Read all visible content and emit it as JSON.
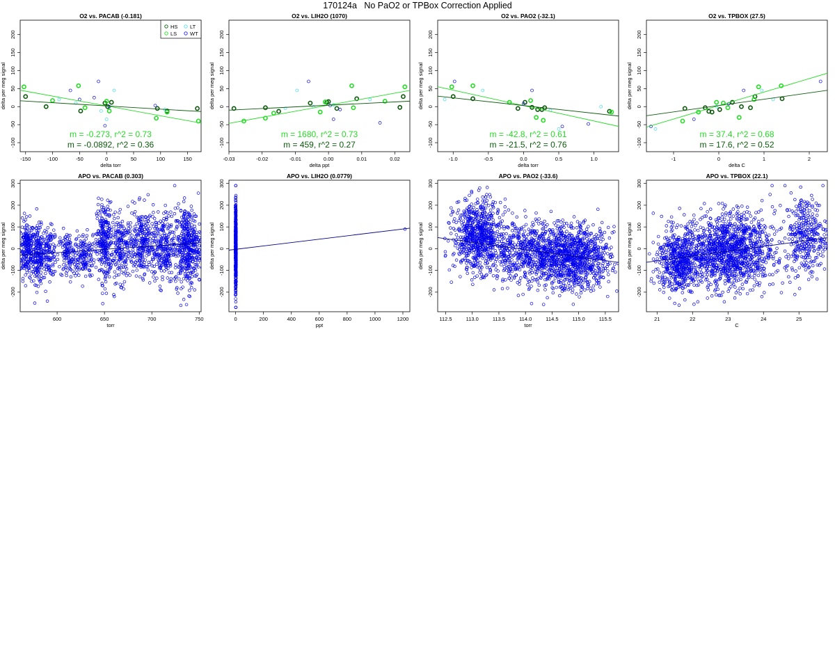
{
  "page_title": "170124a   No PaO2 or TPBox Correction Applied",
  "colors": {
    "HS": "#0b5a0b",
    "LS": "#22dd22",
    "LT": "#55ddee",
    "WT": "#2222dd",
    "apo": "#0000ee",
    "fit_HS": "#0b5a0b",
    "fit_LS": "#22dd22",
    "fit_apo": "#000088"
  },
  "legend": {
    "entries": [
      "HS",
      "LS",
      "LT",
      "WT"
    ],
    "position": "top-right"
  },
  "chart_data": [
    {
      "type": "scatter",
      "title": "O2 vs. PACAB (-0.181)",
      "xlabel": "delta torr",
      "ylabel": "delta per meg signal",
      "xlim": [
        -160,
        175
      ],
      "ylim": [
        -125,
        240
      ],
      "xticks": [
        -150,
        -100,
        -50,
        0,
        50,
        100,
        150
      ],
      "xtick_labels": [
        "-150",
        "-100",
        "-50",
        "0",
        "50",
        "100",
        "150"
      ],
      "yticks": [
        -100,
        -50,
        0,
        50,
        100,
        150,
        200
      ],
      "ytick_labels": [
        "-100",
        "-50",
        "0",
        "50",
        "100",
        "150",
        "200"
      ],
      "show_legend": true,
      "annotations": [
        "m = -0.273, r^2 = 0.73",
        "m = -0.0892, r^2 = 0.36"
      ],
      "fits": [
        {
          "group": "LS",
          "slope": -0.273,
          "intercept": 2
        },
        {
          "group": "HS",
          "slope": -0.0892,
          "intercept": 2
        }
      ],
      "series": [
        {
          "group": "HS",
          "x": [
            -150,
            -112,
            -48,
            -3,
            2,
            9,
            94,
            112,
            168
          ],
          "y": [
            28,
            0,
            -12,
            10,
            0,
            12,
            -5,
            -12,
            -5
          ]
        },
        {
          "group": "LS",
          "x": [
            -153,
            -100,
            -52,
            -40,
            0,
            5,
            92,
            112,
            170
          ],
          "y": [
            55,
            17,
            58,
            -3,
            15,
            -12,
            -32,
            -15,
            -40
          ]
        },
        {
          "group": "LT",
          "x": [
            -88,
            -57,
            -10,
            0,
            14,
            108
          ],
          "y": [
            20,
            10,
            -12,
            -35,
            45,
            -8
          ]
        },
        {
          "group": "WT",
          "x": [
            -67,
            -23,
            -15,
            -3,
            5,
            -50,
            90
          ],
          "y": [
            45,
            25,
            70,
            -53,
            0,
            20,
            3
          ]
        }
      ]
    },
    {
      "type": "scatter",
      "title": "O2 vs. LIH2O (1070)",
      "xlabel": "delta ppt",
      "ylabel": "delta per meg signal",
      "xlim": [
        -0.03,
        0.0245
      ],
      "ylim": [
        -125,
        240
      ],
      "xticks": [
        -0.03,
        -0.02,
        -0.01,
        0,
        0.01,
        0.02
      ],
      "xtick_labels": [
        "-0.03",
        "-0.02",
        "-0.01",
        "0.00",
        "0.01",
        "0.02"
      ],
      "yticks": [
        -100,
        -50,
        0,
        50,
        100,
        150,
        200
      ],
      "ytick_labels": [
        "-100",
        "-50",
        "0",
        "50",
        "100",
        "150",
        "200"
      ],
      "show_legend": false,
      "annotations": [
        "m = 1680, r^2 = 0.73",
        "m = 459, r^2 = 0.27"
      ],
      "fits": [
        {
          "group": "LS",
          "slope": 1680,
          "intercept": 4
        },
        {
          "group": "HS",
          "slope": 459,
          "intercept": 4
        }
      ],
      "series": [
        {
          "group": "HS",
          "x": [
            -0.0285,
            -0.019,
            -0.015,
            -0.0055,
            -0.0005,
            0.0,
            0.0025,
            0.0085,
            0.0215,
            0.0225
          ],
          "y": [
            -5,
            -3,
            -13,
            10,
            12,
            14,
            -5,
            22,
            -2,
            28
          ]
        },
        {
          "group": "LS",
          "x": [
            -0.0255,
            -0.019,
            -0.0165,
            -0.0025,
            -0.001,
            0.007,
            0.0075,
            0.017,
            0.023
          ],
          "y": [
            -40,
            -32,
            -18,
            -15,
            13,
            58,
            -3,
            15,
            55
          ]
        },
        {
          "group": "LT",
          "x": [
            -0.0095,
            -0.013,
            -0.0045,
            0.0015,
            0.0125
          ],
          "y": [
            45,
            -5,
            0,
            5,
            20
          ]
        },
        {
          "group": "WT",
          "x": [
            -0.006,
            0.0035,
            0.0015,
            0.0155,
            0.0005
          ],
          "y": [
            70,
            -8,
            -35,
            -45,
            3
          ]
        }
      ]
    },
    {
      "type": "scatter",
      "title": "O2 vs. PAO2 (-32.1)",
      "xlabel": "delta torr",
      "ylabel": "delta per meg signal",
      "xlim": [
        -1.22,
        1.35
      ],
      "ylim": [
        -125,
        240
      ],
      "xticks": [
        -1.0,
        -0.5,
        0,
        0.5,
        1.0
      ],
      "xtick_labels": [
        "-1.0",
        "-0.5",
        "0.0",
        "0.5",
        "1.0"
      ],
      "yticks": [
        -100,
        -50,
        0,
        50,
        100,
        150,
        200
      ],
      "ytick_labels": [
        "-100",
        "-50",
        "0",
        "50",
        "100",
        "150",
        "200"
      ],
      "show_legend": false,
      "annotations": [
        "m = -42.8, r^2 = 0.61",
        "m = -21.5, r^2 = 0.76"
      ],
      "fits": [
        {
          "group": "LS",
          "slope": -42.8,
          "intercept": 3
        },
        {
          "group": "HS",
          "slope": -21.5,
          "intercept": 3
        }
      ],
      "series": [
        {
          "group": "HS",
          "x": [
            -1.0,
            -0.72,
            -0.08,
            0.02,
            0.12,
            0.2,
            0.26,
            0.3,
            1.22
          ],
          "y": [
            28,
            22,
            -5,
            12,
            -2,
            -8,
            -8,
            -3,
            -13
          ]
        },
        {
          "group": "LS",
          "x": [
            -1.02,
            -0.72,
            -0.2,
            0.1,
            0.18,
            0.28,
            1.25
          ],
          "y": [
            55,
            58,
            12,
            17,
            -30,
            -38,
            -15
          ]
        },
        {
          "group": "LT",
          "x": [
            -1.12,
            -0.58,
            0.38,
            0.5,
            1.1
          ],
          "y": [
            20,
            45,
            -10,
            -62,
            0
          ]
        },
        {
          "group": "WT",
          "x": [
            -0.98,
            0.12,
            0.55,
            0.92,
            0.0
          ],
          "y": [
            70,
            45,
            -55,
            -48,
            8
          ]
        }
      ]
    },
    {
      "type": "scatter",
      "title": "O2 vs. TPBOX (27.5)",
      "xlabel": "delta C",
      "ylabel": "delta per meg signal",
      "xlim": [
        -1.6,
        2.4
      ],
      "ylim": [
        -125,
        240
      ],
      "xticks": [
        -1,
        0,
        1,
        2
      ],
      "xtick_labels": [
        "-1",
        "0",
        "1",
        "2"
      ],
      "yticks": [
        -100,
        -50,
        0,
        50,
        100,
        150,
        200
      ],
      "ytick_labels": [
        "-100",
        "-50",
        "0",
        "50",
        "100",
        "150",
        "200"
      ],
      "show_legend": false,
      "annotations": [
        "m = 37.4, r^2 = 0.68",
        "m = 17.6, r^2 = 0.52"
      ],
      "fits": [
        {
          "group": "LS",
          "slope": 37.4,
          "intercept": 3
        },
        {
          "group": "HS",
          "slope": 17.6,
          "intercept": 3
        }
      ],
      "series": [
        {
          "group": "HS",
          "x": [
            -0.75,
            -0.3,
            -0.22,
            -0.15,
            0.02,
            0.3,
            0.5,
            0.7,
            0.8,
            1.4
          ],
          "y": [
            -5,
            -3,
            -13,
            -15,
            -8,
            12,
            0,
            -3,
            28,
            22
          ]
        },
        {
          "group": "LS",
          "x": [
            -0.8,
            -0.45,
            -0.05,
            0.1,
            0.2,
            0.45,
            0.78,
            0.88,
            1.38
          ],
          "y": [
            -40,
            -15,
            12,
            10,
            -3,
            -30,
            20,
            55,
            58
          ]
        },
        {
          "group": "LT",
          "x": [
            -1.4,
            -0.05,
            0.95,
            1.2
          ],
          "y": [
            -62,
            0,
            45,
            20
          ]
        },
        {
          "group": "WT",
          "x": [
            -1.5,
            0.55,
            0.22,
            -0.55,
            2.25
          ],
          "y": [
            -55,
            45,
            8,
            -35,
            70
          ]
        }
      ]
    },
    {
      "type": "scatter",
      "title": "APO vs. PACAB (0.303)",
      "xlabel": "torr",
      "ylabel": "delta per meg signal",
      "xlim": [
        561,
        752
      ],
      "ylim": [
        -290,
        315
      ],
      "xticks": [
        600,
        650,
        700,
        750
      ],
      "xtick_labels": [
        "600",
        "650",
        "700",
        "750"
      ],
      "yticks": [
        -200,
        -100,
        0,
        100,
        200,
        300
      ],
      "ytick_labels": [
        "-200",
        "-100",
        "0",
        "100",
        "200",
        "300"
      ],
      "show_legend": false,
      "annotations": [],
      "fits": [
        {
          "group": "apo",
          "slope": 0.303,
          "intercept": -200
        }
      ],
      "clusters": [
        {
          "cx": 568,
          "sx": 4,
          "cy": 0,
          "sy": 65,
          "n": 230
        },
        {
          "cx": 580,
          "sx": 3.5,
          "cy": -30,
          "sy": 65,
          "n": 180
        },
        {
          "cx": 592,
          "sx": 4,
          "cy": -20,
          "sy": 55,
          "n": 120
        },
        {
          "cx": 611,
          "sx": 5,
          "cy": -30,
          "sy": 55,
          "n": 120
        },
        {
          "cx": 628,
          "sx": 6,
          "cy": -30,
          "sy": 50,
          "n": 140
        },
        {
          "cx": 650,
          "sx": 4,
          "cy": 30,
          "sy": 90,
          "n": 260
        },
        {
          "cx": 668,
          "sx": 6,
          "cy": 0,
          "sy": 75,
          "n": 200
        },
        {
          "cx": 690,
          "sx": 7,
          "cy": 30,
          "sy": 75,
          "n": 260
        },
        {
          "cx": 712,
          "sx": 6,
          "cy": 0,
          "sy": 80,
          "n": 230
        },
        {
          "cx": 738,
          "sx": 7,
          "cy": 10,
          "sy": 90,
          "n": 460
        }
      ]
    },
    {
      "type": "scatter",
      "title": "APO vs. LIH2O (0.0779)",
      "xlabel": "ppt",
      "ylabel": "delta per meg signal",
      "xlim": [
        -48,
        1250
      ],
      "ylim": [
        -290,
        315
      ],
      "xticks": [
        0,
        200,
        400,
        600,
        800,
        1000,
        1200
      ],
      "xtick_labels": [
        "0",
        "200",
        "400",
        "600",
        "800",
        "1000",
        "1200"
      ],
      "yticks": [
        -200,
        -100,
        0,
        100,
        200,
        300
      ],
      "ytick_labels": [
        "-200",
        "-100",
        "0",
        "100",
        "200",
        "300"
      ],
      "show_legend": false,
      "annotations": [],
      "fits": [
        {
          "group": "apo",
          "slope": 0.0779,
          "intercept": -3
        }
      ],
      "clusters": [
        {
          "cx": 1,
          "sx": 1.2,
          "cy": 0,
          "sy": 90,
          "n": 700
        }
      ],
      "points": [
        {
          "x": 1215,
          "y": 90
        }
      ]
    },
    {
      "type": "scatter",
      "title": "APO vs. PAO2 (-33.6)",
      "xlabel": "torr",
      "ylabel": "delta per meg signal",
      "xlim": [
        112.35,
        115.75
      ],
      "ylim": [
        -290,
        315
      ],
      "xticks": [
        112.5,
        113.0,
        113.5,
        114.0,
        114.5,
        115.0,
        115.5
      ],
      "xtick_labels": [
        "112.5",
        "113.0",
        "113.5",
        "114.0",
        "114.5",
        "115.0",
        "115.5"
      ],
      "yticks": [
        -200,
        -100,
        0,
        100,
        200,
        300
      ],
      "ytick_labels": [
        "-200",
        "-100",
        "0",
        "100",
        "200",
        "300"
      ],
      "show_legend": false,
      "annotations": [],
      "fits": [
        {
          "group": "apo",
          "slope": -33.6,
          "intercept": 3826
        }
      ],
      "clusters": [
        {
          "cx": 113.1,
          "sx": 0.22,
          "cy": 60,
          "sy": 80,
          "n": 700
        },
        {
          "cx": 114.3,
          "sx": 0.55,
          "cy": -20,
          "sy": 70,
          "n": 1000
        },
        {
          "cx": 115.0,
          "sx": 0.3,
          "cy": -50,
          "sy": 70,
          "n": 600
        }
      ]
    },
    {
      "type": "scatter",
      "title": "APO vs. TPBOX (22.1)",
      "xlabel": "C",
      "ylabel": "delta per meg signal",
      "xlim": [
        20.7,
        25.8
      ],
      "ylim": [
        -290,
        315
      ],
      "xticks": [
        21,
        22,
        23,
        24,
        25
      ],
      "xtick_labels": [
        "21",
        "22",
        "23",
        "24",
        "25"
      ],
      "yticks": [
        -200,
        -100,
        0,
        100,
        200,
        300
      ],
      "ytick_labels": [
        "-200",
        "-100",
        "0",
        "100",
        "200",
        "300"
      ],
      "show_legend": false,
      "annotations": [],
      "fits": [
        {
          "group": "apo",
          "slope": 22.1,
          "intercept": -520
        }
      ],
      "clusters": [
        {
          "cx": 21.6,
          "sx": 0.3,
          "cy": -60,
          "sy": 70,
          "n": 500
        },
        {
          "cx": 23.0,
          "sx": 0.65,
          "cy": -10,
          "sy": 85,
          "n": 1300
        },
        {
          "cx": 25.2,
          "sx": 0.3,
          "cy": 60,
          "sy": 90,
          "n": 350
        }
      ]
    }
  ]
}
